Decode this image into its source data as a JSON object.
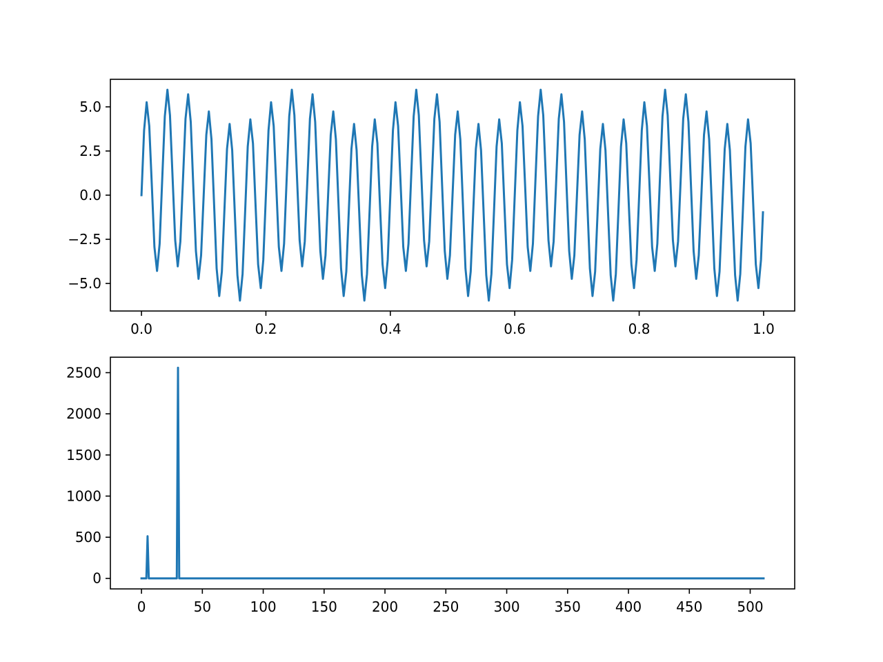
{
  "chart_data": [
    {
      "type": "line",
      "color": "#1f77b4",
      "xlim": [
        -0.05,
        1.05
      ],
      "ylim": [
        -6.56,
        6.56
      ],
      "xticks": [
        {
          "value": 0,
          "label": "0.0"
        },
        0.2,
        0.4,
        0.6,
        0.8,
        {
          "value": 1,
          "label": "1.0"
        }
      ],
      "yticks": [
        {
          "value": -5,
          "label": "−5.0"
        },
        {
          "value": -2.5,
          "label": "−2.5"
        },
        {
          "value": 0,
          "label": "0.0"
        },
        2.5,
        {
          "value": 5,
          "label": "5.0"
        }
      ],
      "x": [
        0,
        0.0042,
        0.0083,
        0.0125,
        0.0167,
        0.0208,
        0.025,
        0.0292,
        0.0333,
        0.0375,
        0.0417,
        0.0458,
        0.05,
        0.0542,
        0.0583,
        0.0625,
        0.0667,
        0.0708,
        0.075,
        0.0792,
        0.0833,
        0.0875,
        0.0917,
        0.0958,
        0.1,
        0.1042,
        0.1083,
        0.1125,
        0.1167,
        0.1208,
        0.125,
        0.1292,
        0.1333,
        0.1375,
        0.1417,
        0.1458,
        0.15,
        0.1542,
        0.1583,
        0.1625,
        0.1667,
        0.1708,
        0.175,
        0.1792,
        0.1833,
        0.1875,
        0.1917,
        0.1958,
        0.2,
        0.2042,
        0.2083,
        0.2125,
        0.2167,
        0.2208,
        0.225,
        0.2292,
        0.2333,
        0.2375,
        0.2417,
        0.2458,
        0.25,
        0.2542,
        0.2583,
        0.2625,
        0.2667,
        0.2708,
        0.275,
        0.2792,
        0.2833,
        0.2875,
        0.2917,
        0.2958,
        0.3,
        0.3042,
        0.3083,
        0.3125,
        0.3167,
        0.3208,
        0.325,
        0.3292,
        0.3333,
        0.3375,
        0.3417,
        0.3458,
        0.35,
        0.3542,
        0.3583,
        0.3625,
        0.3667,
        0.3708,
        0.375,
        0.3792,
        0.3833,
        0.3875,
        0.3917,
        0.3958,
        0.4,
        0.4042,
        0.4083,
        0.4125,
        0.4167,
        0.4208,
        0.425,
        0.4292,
        0.4333,
        0.4375,
        0.4417,
        0.4458,
        0.45,
        0.4542,
        0.4583,
        0.4625,
        0.4667,
        0.4708,
        0.475,
        0.4792,
        0.4833,
        0.4875,
        0.4917,
        0.4958,
        0.5,
        0.5042,
        0.5083,
        0.5125,
        0.5167,
        0.5208,
        0.525,
        0.5292,
        0.5333,
        0.5375,
        0.5417,
        0.5458,
        0.55,
        0.5542,
        0.5583,
        0.5625,
        0.5667,
        0.5708,
        0.575,
        0.5792,
        0.5833,
        0.5875,
        0.5917,
        0.5958,
        0.6,
        0.6042,
        0.6083,
        0.6125,
        0.6167,
        0.6208,
        0.625,
        0.6292,
        0.6333,
        0.6375,
        0.6417,
        0.6458,
        0.65,
        0.6542,
        0.6583,
        0.6625,
        0.6667,
        0.6708,
        0.675,
        0.6792,
        0.6833,
        0.6875,
        0.6917,
        0.6958,
        0.7,
        0.7042,
        0.7083,
        0.7125,
        0.7167,
        0.7208,
        0.725,
        0.7292,
        0.7333,
        0.7375,
        0.7417,
        0.7458,
        0.75,
        0.7542,
        0.7583,
        0.7625,
        0.7667,
        0.7708,
        0.775,
        0.7792,
        0.7833,
        0.7875,
        0.7917,
        0.7958,
        0.8,
        0.8042,
        0.8083,
        0.8125,
        0.8167,
        0.8208,
        0.825,
        0.8292,
        0.8333,
        0.8375,
        0.8417,
        0.8458,
        0.85,
        0.8542,
        0.8583,
        0.8625,
        0.8667,
        0.8708,
        0.875,
        0.8792,
        0.8833,
        0.8875,
        0.8917,
        0.8958,
        0.9,
        0.9042,
        0.9083,
        0.9125,
        0.9167,
        0.9208,
        0.925,
        0.9292,
        0.9333,
        0.9375,
        0.9417,
        0.9458,
        0.95,
        0.9542,
        0.9583,
        0.9625,
        0.9667,
        0.9708,
        0.975,
        0.9792,
        0.9833,
        0.9875,
        0.9917,
        0.9958,
        0.999
      ],
      "values": [
        0,
        3.67,
        5.26,
        3.92,
        0.5,
        -2.93,
        -4.29,
        -2.75,
        0.87,
        4.46,
        5.97,
        4.53,
        1,
        -2.55,
        -4.03,
        -2.62,
        0.87,
        4.33,
        5.71,
        4.15,
        0.5,
        -3.16,
        -4.74,
        -3.41,
        0,
        3.41,
        4.74,
        3.16,
        -0.5,
        -4.15,
        -5.71,
        -4.33,
        -0.87,
        2.62,
        4.03,
        2.55,
        -1,
        -4.53,
        -5.97,
        -4.46,
        -0.87,
        2.75,
        4.29,
        2.93,
        -0.5,
        -3.92,
        -5.26,
        -3.67,
        0,
        3.67,
        5.26,
        3.92,
        0.5,
        -2.93,
        -4.29,
        -2.75,
        0.87,
        4.46,
        5.97,
        4.53,
        1,
        -2.55,
        -4.03,
        -2.62,
        0.87,
        4.33,
        5.71,
        4.15,
        0.5,
        -3.16,
        -4.74,
        -3.41,
        0,
        3.41,
        4.74,
        3.16,
        -0.5,
        -4.15,
        -5.71,
        -4.33,
        -0.87,
        2.62,
        4.03,
        2.55,
        -1,
        -4.53,
        -5.97,
        -4.46,
        -0.87,
        2.75,
        4.29,
        2.93,
        -0.5,
        -3.92,
        -5.26,
        -3.67,
        0,
        3.67,
        5.26,
        3.92,
        0.5,
        -2.93,
        -4.29,
        -2.75,
        0.87,
        4.46,
        5.97,
        4.53,
        1,
        -2.55,
        -4.03,
        -2.62,
        0.87,
        4.33,
        5.71,
        4.15,
        0.5,
        -3.16,
        -4.74,
        -3.41,
        0,
        3.41,
        4.74,
        3.16,
        -0.5,
        -4.15,
        -5.71,
        -4.33,
        -0.87,
        2.62,
        4.03,
        2.55,
        -1,
        -4.53,
        -5.97,
        -4.46,
        -0.87,
        2.75,
        4.29,
        2.93,
        -0.5,
        -3.92,
        -5.26,
        -3.67,
        0,
        3.67,
        5.26,
        3.92,
        0.5,
        -2.93,
        -4.29,
        -2.75,
        0.87,
        4.46,
        5.97,
        4.53,
        1,
        -2.55,
        -4.03,
        -2.62,
        0.87,
        4.33,
        5.71,
        4.15,
        0.5,
        -3.16,
        -4.74,
        -3.41,
        0,
        3.41,
        4.74,
        3.16,
        -0.5,
        -4.15,
        -5.71,
        -4.33,
        -0.87,
        2.62,
        4.03,
        2.55,
        -1,
        -4.53,
        -5.97,
        -4.46,
        -0.87,
        2.75,
        4.29,
        2.93,
        -0.5,
        -3.92,
        -5.26,
        -3.67,
        0,
        3.67,
        5.26,
        3.92,
        0.5,
        -2.93,
        -4.29,
        -2.75,
        0.87,
        4.46,
        5.97,
        4.53,
        1,
        -2.55,
        -4.03,
        -2.62,
        0.87,
        4.33,
        5.71,
        4.15,
        0.5,
        -3.16,
        -4.74,
        -3.41,
        0,
        3.41,
        4.74,
        3.16,
        -0.5,
        -4.15,
        -5.71,
        -4.33,
        -0.87,
        2.62,
        4.03,
        2.55,
        -1,
        -4.53,
        -5.97,
        -4.46,
        -0.87,
        2.75,
        4.29,
        2.93,
        -0.5,
        -3.92,
        -5.26,
        -3.67,
        -0.97
      ]
    },
    {
      "type": "line",
      "color": "#1f77b4",
      "xlim": [
        -25.55,
        536.55
      ],
      "ylim": [
        -128,
        2688
      ],
      "xticks": [
        0,
        50,
        100,
        150,
        200,
        250,
        300,
        350,
        400,
        450,
        500
      ],
      "yticks": [
        0,
        500,
        1000,
        1500,
        2000,
        2500
      ],
      "x": [
        0,
        4,
        5,
        6,
        29,
        30,
        31,
        511
      ],
      "values": [
        0,
        0,
        512,
        0,
        0,
        2560,
        0,
        0
      ]
    }
  ]
}
